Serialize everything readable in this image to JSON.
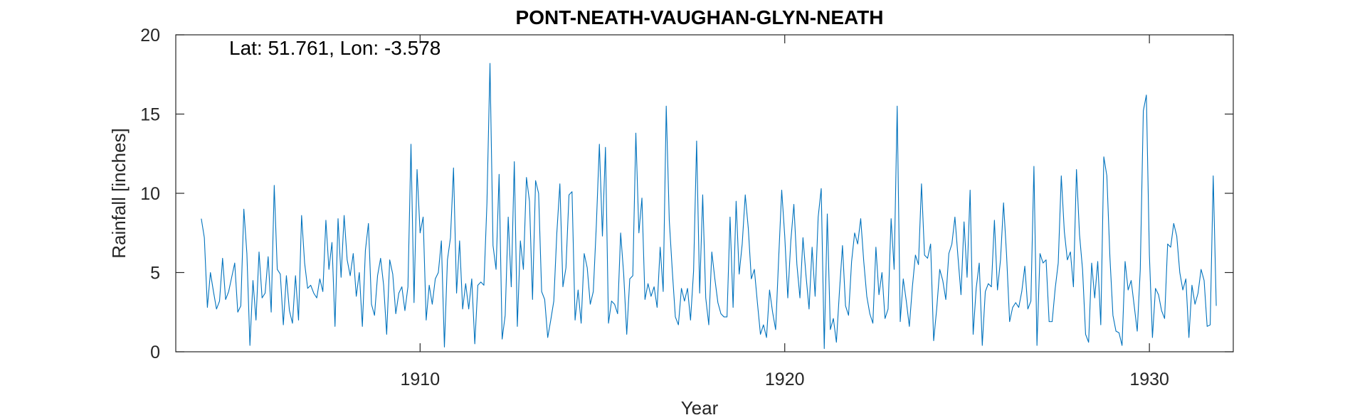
{
  "chart_data": {
    "type": "line",
    "title": "PONT-NEATH-VAUGHAN-GLYN-NEATH",
    "annotation": "Lat: 51.761, Lon: -3.578",
    "xlabel": "Year",
    "ylabel": "Rainfall [inches]",
    "xlim": [
      1903.3,
      1932.3
    ],
    "ylim": [
      0,
      20
    ],
    "xticks": [
      1910,
      1920,
      1930
    ],
    "yticks": [
      0,
      5,
      10,
      15,
      20
    ],
    "grid": false,
    "line_color": "#0072BD",
    "axis_color": "#262626",
    "series": [
      {
        "x_start": "1904-01",
        "x_step": "month",
        "values": [
          8.4,
          7.2,
          2.8,
          5.0,
          3.8,
          2.7,
          3.2,
          5.9,
          3.3,
          3.8,
          4.7,
          5.6,
          2.5,
          2.9,
          9.0,
          6.2,
          0.4,
          4.5,
          2.0,
          6.3,
          3.4,
          3.7,
          6.0,
          2.5,
          10.5,
          5.2,
          4.9,
          1.7,
          4.8,
          2.6,
          1.8,
          4.8,
          2.0,
          8.6,
          5.6,
          4.0,
          4.2,
          3.7,
          3.4,
          4.6,
          3.8,
          8.3,
          5.2,
          6.9,
          1.6,
          8.4,
          4.7,
          8.6,
          5.8,
          4.8,
          6.2,
          3.5,
          5.0,
          1.6,
          6.4,
          8.1,
          3.0,
          2.3,
          4.8,
          5.9,
          4.2,
          1.1,
          5.8,
          4.9,
          2.4,
          3.7,
          4.1,
          2.6,
          4.1,
          13.1,
          3.1,
          11.5,
          7.5,
          8.5,
          2.0,
          4.2,
          3.0,
          4.6,
          5.0,
          7.0,
          0.3,
          5.8,
          7.2,
          11.6,
          3.7,
          7.0,
          2.7,
          4.3,
          2.7,
          4.6,
          0.5,
          4.2,
          4.4,
          4.2,
          9.4,
          18.2,
          6.7,
          5.2,
          11.2,
          0.8,
          2.3,
          8.5,
          4.1,
          12.0,
          1.6,
          7.0,
          5.2,
          11.0,
          9.5,
          3.3,
          10.8,
          10.0,
          3.8,
          3.3,
          0.9,
          2.0,
          3.2,
          7.5,
          10.6,
          4.1,
          5.3,
          9.9,
          10.1,
          2.0,
          3.9,
          1.8,
          6.2,
          5.3,
          3.0,
          3.8,
          8.0,
          13.1,
          7.3,
          12.9,
          1.8,
          3.2,
          3.0,
          2.4,
          7.5,
          4.9,
          1.1,
          4.6,
          4.8,
          13.8,
          7.5,
          9.7,
          3.3,
          4.3,
          3.5,
          4.1,
          2.8,
          6.6,
          3.8,
          15.5,
          8.3,
          5.1,
          2.2,
          1.7,
          4.0,
          3.2,
          4.0,
          2.0,
          5.1,
          13.3,
          3.7,
          9.9,
          3.4,
          1.7,
          6.3,
          4.6,
          3.1,
          2.4,
          2.2,
          2.2,
          8.5,
          2.8,
          9.5,
          4.9,
          6.8,
          9.9,
          7.8,
          4.6,
          5.2,
          3.1,
          1.1,
          1.7,
          0.9,
          3.9,
          2.5,
          1.4,
          5.9,
          10.2,
          7.3,
          3.4,
          7.0,
          9.3,
          5.5,
          3.4,
          7.2,
          4.8,
          2.7,
          6.6,
          3.5,
          8.5,
          10.3,
          0.2,
          8.7,
          1.4,
          2.1,
          0.6,
          3.8,
          6.7,
          2.9,
          2.3,
          5.7,
          7.5,
          6.8,
          8.4,
          5.7,
          3.5,
          2.4,
          1.8,
          6.6,
          3.6,
          5.0,
          2.1,
          2.7,
          8.4,
          5.2,
          15.5,
          1.9,
          4.6,
          3.2,
          1.6,
          4.1,
          6.1,
          5.5,
          10.6,
          6.1,
          5.9,
          6.8,
          0.7,
          2.7,
          5.2,
          4.5,
          3.3,
          6.2,
          6.8,
          8.5,
          6.0,
          3.6,
          8.2,
          4.7,
          10.2,
          1.1,
          4.0,
          5.6,
          0.4,
          3.8,
          4.3,
          4.1,
          8.3,
          3.9,
          5.8,
          9.4,
          6.1,
          1.9,
          2.8,
          3.1,
          2.8,
          3.8,
          5.4,
          2.7,
          3.2,
          11.7,
          0.4,
          6.2,
          5.6,
          5.8,
          1.9,
          1.9,
          4.0,
          5.6,
          11.1,
          7.6,
          5.8,
          6.3,
          4.1,
          11.5,
          7.4,
          5.2,
          1.1,
          0.6,
          5.6,
          3.4,
          5.7,
          1.7,
          12.3,
          11.1,
          6.0,
          2.3,
          1.3,
          1.2,
          0.4,
          5.7,
          3.9,
          4.5,
          2.9,
          1.3,
          5.2,
          15.2,
          16.2,
          6.1,
          0.9,
          4.0,
          3.6,
          2.6,
          2.1,
          6.8,
          6.6,
          8.1,
          7.3,
          5.0,
          3.9,
          4.6,
          0.9,
          4.2,
          3.0,
          3.7,
          5.2,
          4.5,
          1.6,
          1.7,
          11.1,
          2.9
        ]
      }
    ]
  }
}
